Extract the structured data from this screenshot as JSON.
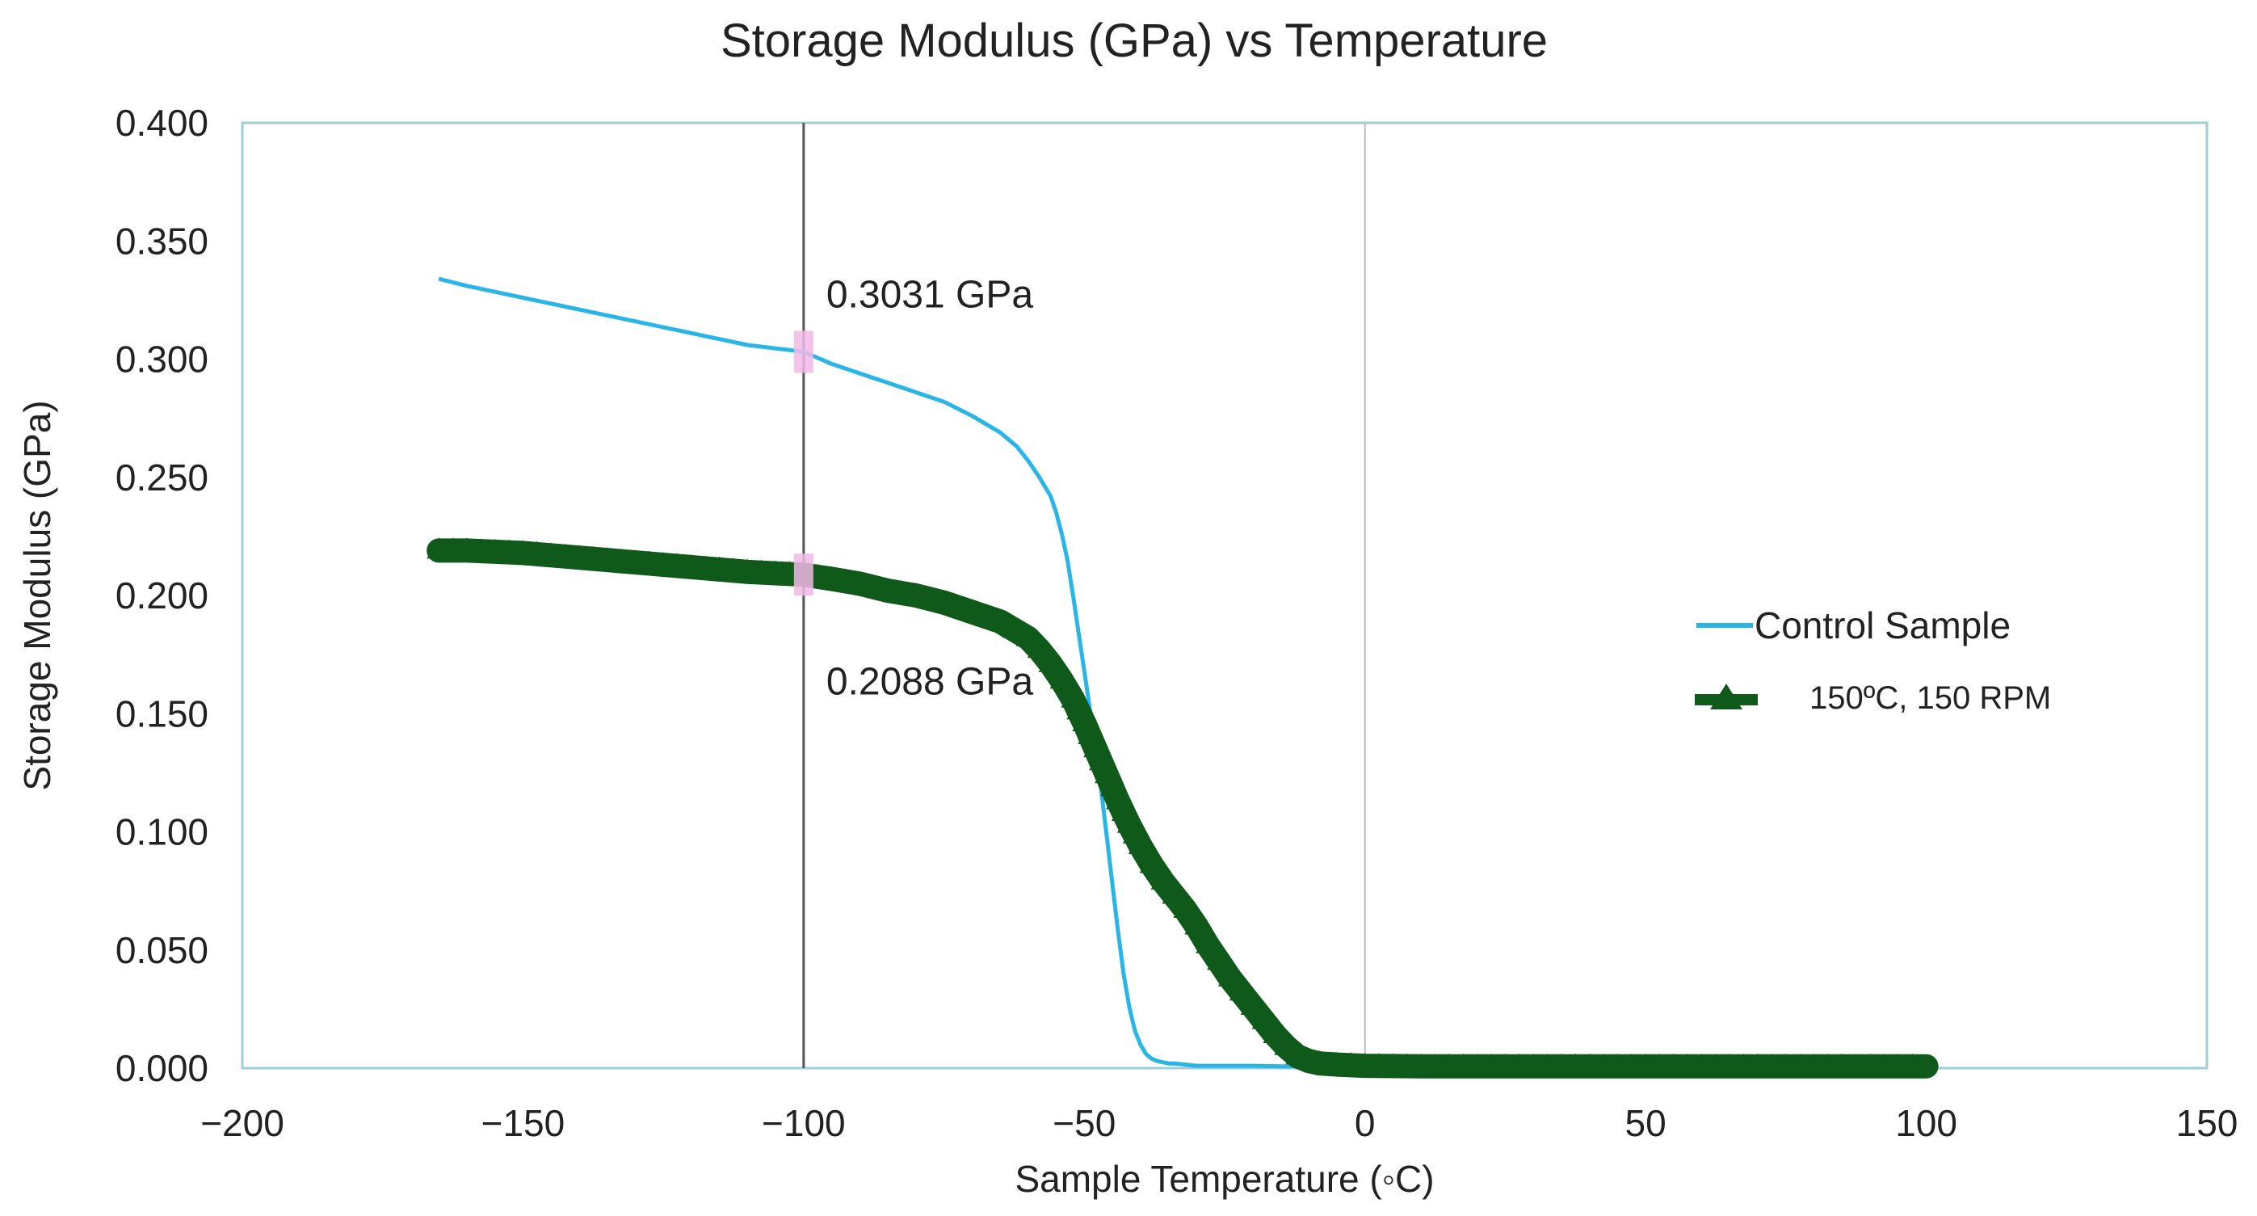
{
  "chart_data": {
    "type": "line",
    "title": "Storage Modulus (GPa) vs Temperature",
    "xlabel": "Sample Temperature (◦C)",
    "ylabel": "Storage Modulus (GPa)",
    "xlim": [
      -200,
      150
    ],
    "ylim": [
      0,
      0.4
    ],
    "x_ticks": [
      -200,
      -150,
      -100,
      -50,
      0,
      50,
      100,
      150
    ],
    "x_tick_labels": [
      "−200",
      "−150",
      "−100",
      "−50",
      "0",
      "50",
      "100",
      "150"
    ],
    "y_ticks": [
      0,
      0.05,
      0.1,
      0.15,
      0.2,
      0.25,
      0.3,
      0.35,
      0.4
    ],
    "y_tick_labels": [
      "0.000",
      "0.050",
      "0.100",
      "0.150",
      "0.200",
      "0.250",
      "0.300",
      "0.350",
      "0.400"
    ],
    "grid": false,
    "legend": "right",
    "vertical_lines": [
      -100,
      0
    ],
    "annotations": [
      {
        "text": "0.3031 GPa",
        "x": -100,
        "y": 0.3031
      },
      {
        "text": "0.2088 GPa",
        "x": -100,
        "y": 0.2088
      }
    ],
    "series": [
      {
        "name": "Control Sample",
        "color": "#29b6e6",
        "marker": "none",
        "x": [
          -165,
          -160,
          -150,
          -140,
          -130,
          -120,
          -110,
          -100,
          -95,
          -90,
          -85,
          -80,
          -75,
          -70,
          -65,
          -62,
          -60,
          -58,
          -56,
          -55,
          -54,
          -53,
          -52,
          -51,
          -50,
          -49,
          -48,
          -47,
          -46,
          -45,
          -44,
          -43,
          -42,
          -41,
          -40,
          -39,
          -38,
          -37,
          -36,
          -35,
          -34,
          -32,
          -30,
          -25,
          -20,
          -15,
          -12
        ],
        "y": [
          0.334,
          0.331,
          0.326,
          0.321,
          0.316,
          0.311,
          0.306,
          0.3031,
          0.298,
          0.294,
          0.29,
          0.286,
          0.282,
          0.276,
          0.269,
          0.263,
          0.257,
          0.25,
          0.242,
          0.235,
          0.226,
          0.215,
          0.2,
          0.184,
          0.168,
          0.152,
          0.136,
          0.118,
          0.098,
          0.078,
          0.058,
          0.04,
          0.026,
          0.016,
          0.01,
          0.006,
          0.004,
          0.003,
          0.0025,
          0.002,
          0.002,
          0.0015,
          0.001,
          0.001,
          0.001,
          0.0008,
          0.0008
        ]
      },
      {
        "name": "150ºC, 150 RPM",
        "color": "#0f5a1a",
        "marker": "triangle",
        "x": [
          -165,
          -160,
          -150,
          -140,
          -130,
          -120,
          -110,
          -100,
          -95,
          -90,
          -85,
          -80,
          -75,
          -70,
          -65,
          -60,
          -58,
          -56,
          -54,
          -52,
          -50,
          -48,
          -46,
          -44,
          -42,
          -40,
          -38,
          -36,
          -34,
          -32,
          -30,
          -28,
          -26,
          -24,
          -22,
          -20,
          -18,
          -16,
          -14,
          -12,
          -10,
          -8,
          -5,
          0,
          10,
          20,
          30,
          40,
          50,
          60,
          70,
          80,
          90,
          100
        ],
        "y": [
          0.219,
          0.219,
          0.218,
          0.216,
          0.214,
          0.212,
          0.21,
          0.2088,
          0.207,
          0.205,
          0.202,
          0.2,
          0.197,
          0.193,
          0.189,
          0.182,
          0.177,
          0.171,
          0.164,
          0.156,
          0.146,
          0.135,
          0.124,
          0.113,
          0.103,
          0.094,
          0.086,
          0.079,
          0.073,
          0.067,
          0.06,
          0.052,
          0.045,
          0.038,
          0.032,
          0.026,
          0.02,
          0.014,
          0.009,
          0.005,
          0.003,
          0.002,
          0.0015,
          0.001,
          0.0008,
          0.0008,
          0.0008,
          0.0008,
          0.0008,
          0.0008,
          0.0008,
          0.0008,
          0.0008,
          0.0008
        ]
      }
    ]
  }
}
